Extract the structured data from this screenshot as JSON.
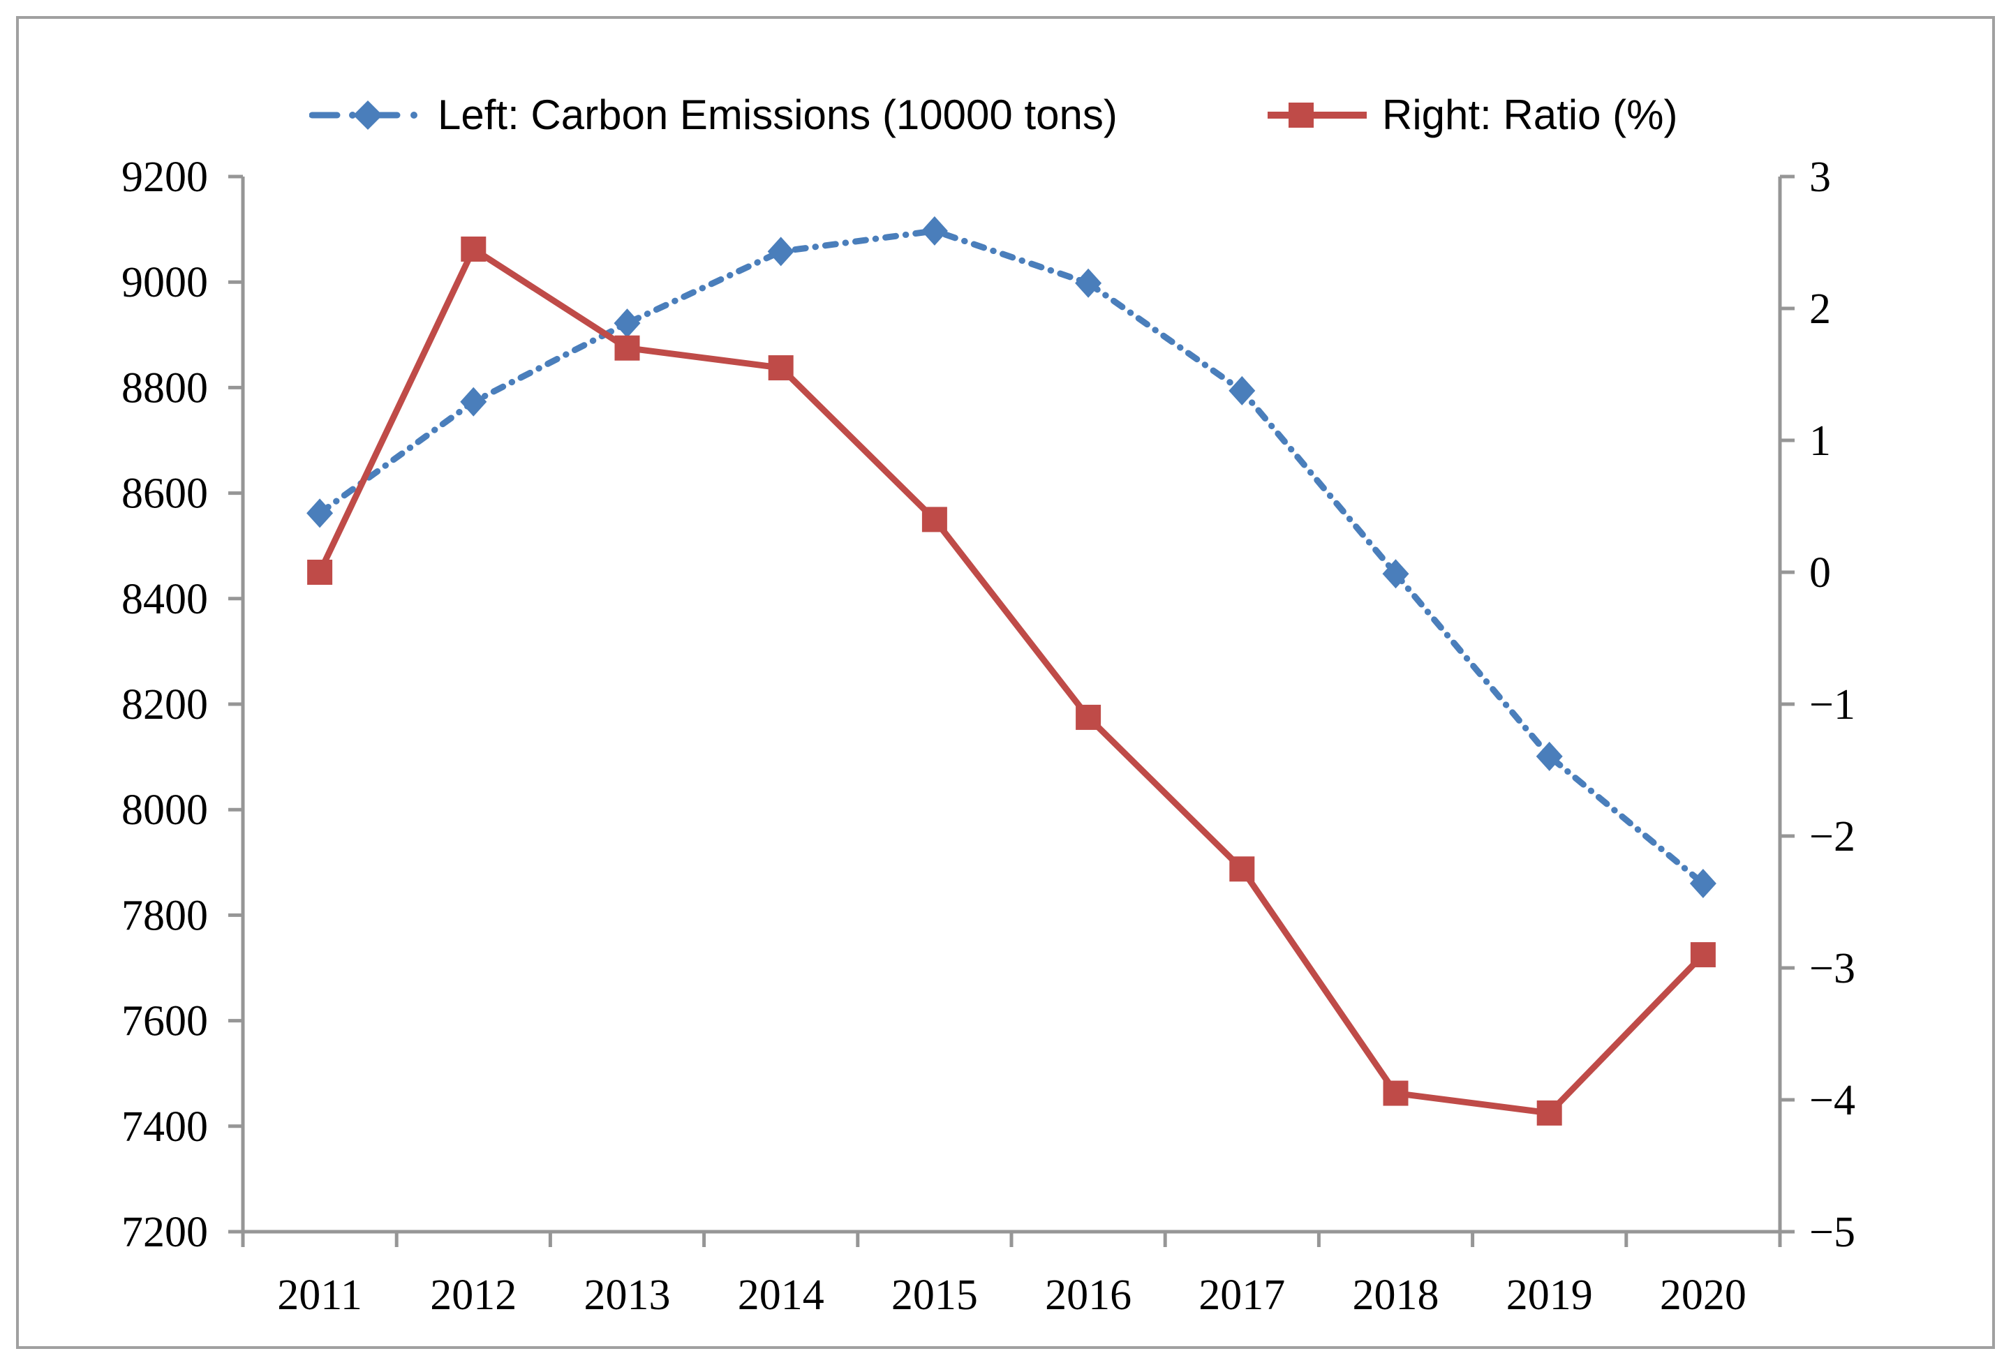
{
  "figure": {
    "background": "#ffffff",
    "border_color": "#a0a0a0",
    "axis_color": "#969696",
    "text_color": "#000000"
  },
  "chart_data": {
    "type": "line",
    "title": "",
    "categories": [
      "2011",
      "2012",
      "2013",
      "2014",
      "2015",
      "2016",
      "2017",
      "2018",
      "2019",
      "2020"
    ],
    "series": [
      {
        "name": "Left: Carbon Emissions (10000 tons)",
        "axis": "left",
        "color": "#4a7ebb",
        "line_style": "dash-dot",
        "marker": "diamond",
        "values": [
          8562,
          8773,
          8922,
          9058,
          9097,
          8998,
          8794,
          8447,
          8101,
          7860
        ]
      },
      {
        "name": "Right: Ratio (%)",
        "axis": "right",
        "color": "#bf4b48",
        "line_style": "solid",
        "marker": "square",
        "values": [
          0.0,
          2.45,
          1.7,
          1.55,
          0.4,
          -1.1,
          -2.25,
          -3.95,
          -4.1,
          -2.9
        ]
      }
    ],
    "left_axis": {
      "min": 7200,
      "max": 9200,
      "step": 200,
      "tick_labels": [
        "9200",
        "9000",
        "8800",
        "8600",
        "8400",
        "8200",
        "8000",
        "7800",
        "7600",
        "7400",
        "7200"
      ]
    },
    "right_axis": {
      "min": -5,
      "max": 3,
      "step": 1,
      "tick_labels": [
        "3",
        "2",
        "1",
        "0",
        "−1",
        "−2",
        "−3",
        "−4",
        "−5"
      ]
    },
    "x_axis": {
      "tick_labels": [
        "2011",
        "2012",
        "2013",
        "2014",
        "2015",
        "2016",
        "2017",
        "2018",
        "2019",
        "2020"
      ]
    },
    "legend_position": "top",
    "grid": false
  }
}
